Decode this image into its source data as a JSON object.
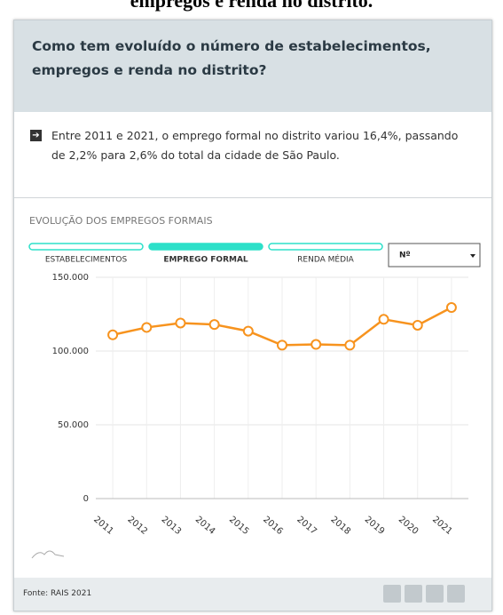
{
  "page_heading": "empregos e renda no distrito.",
  "card_title": "Como tem evoluído o número de estabelecimentos, empregos e renda no distrito?",
  "note": "Entre 2011 e 2021, o emprego formal no distrito variou 16,4%, passando de 2,2% para 2,6% do total da cidade de São Paulo.",
  "section_title": "EVOLUÇÃO DOS EMPREGOS FORMAIS",
  "tabs": [
    "ESTABELECIMENTOS",
    "EMPREGO FORMAL",
    "RENDA MÉDIA"
  ],
  "dropdown": "Nº",
  "source": "Fonte: RAIS 2021",
  "chart_data": {
    "type": "line",
    "categories": [
      "2011",
      "2012",
      "2013",
      "2014",
      "2015",
      "2016",
      "2017",
      "2018",
      "2019",
      "2020",
      "2021"
    ],
    "series": [
      {
        "name": "EMPREGO FORMAL",
        "color": "#f7931e",
        "values": [
          111000,
          116000,
          119000,
          118000,
          113500,
          104000,
          104500,
          104000,
          121500,
          117500,
          129500
        ]
      }
    ],
    "ylim": [
      0,
      150000
    ],
    "yticks": [
      0,
      {
        "value": 50000,
        "label": "50.000"
      },
      {
        "value": 100000,
        "label": "100.000"
      },
      {
        "value": 150000,
        "label": "150.000"
      }
    ],
    "grid": true
  }
}
